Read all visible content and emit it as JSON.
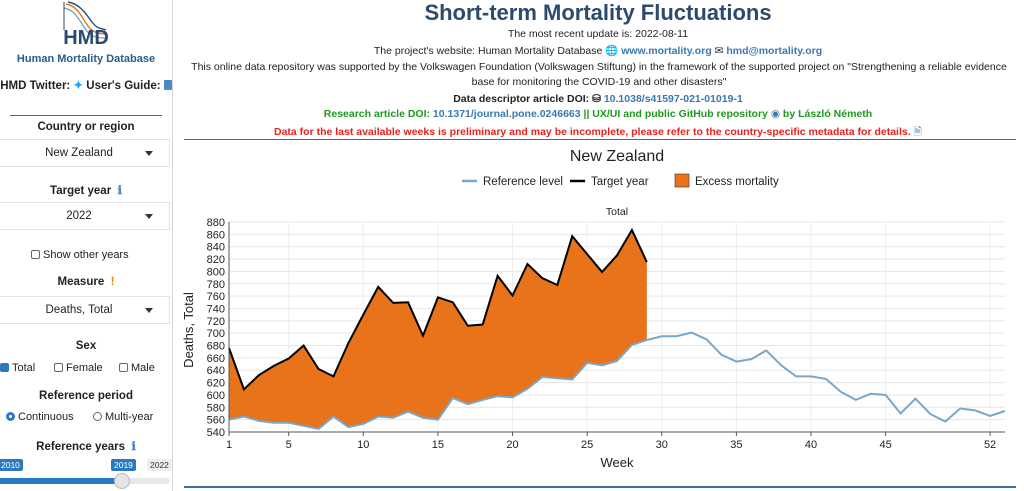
{
  "sidebar": {
    "logo_text": "HMD",
    "db_name": "Human Mortality Database",
    "twitter_label": "HMD Twitter:",
    "guide_label": "User's Guide:",
    "country_label": "Country or region",
    "country_value": "New Zealand",
    "target_year_label": "Target year",
    "target_year_value": "2022",
    "show_other_years": "Show other years",
    "measure_label": "Measure",
    "measure_value": "Deaths, Total",
    "sex_label": "Sex",
    "sex_options": [
      "Total",
      "Female",
      "Male"
    ],
    "sex_selected": "Total",
    "ref_period_label": "Reference period",
    "ref_period_options": [
      "Continuous",
      "Multi-year"
    ],
    "ref_period_selected": "Continuous",
    "ref_years_label": "Reference years",
    "slider_min": "2010",
    "slider_value": "2019",
    "slider_max": "2022"
  },
  "header": {
    "title": "Short-term Mortality Fluctuations",
    "update_prefix": "The most recent update is: ",
    "update_date": "2022-08-11",
    "website_prefix": "The project's website: Human Mortality Database",
    "website_url": "www.mortality.org",
    "email": "hmd@mortality.org",
    "support_text": "This online data repository was supported by the Volkswagen Foundation (Volkswagen Stiftung) in the framework of the supported project on \"Strengthening a reliable evidence base for monitoring the COVID-19 and other disasters\"",
    "descriptor_prefix": "Data descriptor article DOI:",
    "descriptor_doi": "10.1038/s41597-021-01019-1",
    "research_prefix": "Research article DOI:",
    "research_doi": "10.1371/journal.pone.0246663",
    "uxui_text": "|| UX/UI and public GitHub repository",
    "uxui_by": "by László Németh",
    "warning": "Data for the last available weeks is preliminary and may be incomplete, please refer to the country-specific metadata for details."
  },
  "chart_data": {
    "type": "line",
    "title": "New Zealand",
    "subtitle": "Total",
    "xlabel": "Week",
    "ylabel": "Deaths, Total",
    "xlim": [
      1,
      53
    ],
    "ylim": [
      540,
      880
    ],
    "xticks": [
      1,
      5,
      10,
      15,
      20,
      25,
      30,
      35,
      40,
      45,
      52
    ],
    "yticks": [
      540,
      560,
      580,
      600,
      620,
      640,
      660,
      680,
      700,
      720,
      740,
      760,
      780,
      800,
      820,
      840,
      860,
      880
    ],
    "legend_position": "top",
    "legend": [
      "Reference level",
      "Target year",
      "Excess mortality"
    ],
    "colors": {
      "reference": "#7aa6c8",
      "target": "#000000",
      "excess": "#e8731a"
    },
    "series": [
      {
        "name": "Reference level",
        "x": [
          1,
          2,
          3,
          4,
          5,
          6,
          7,
          8,
          9,
          10,
          11,
          12,
          13,
          14,
          15,
          16,
          17,
          18,
          19,
          20,
          21,
          22,
          23,
          24,
          25,
          26,
          27,
          28,
          29,
          30,
          31,
          32,
          33,
          34,
          35,
          36,
          37,
          38,
          39,
          40,
          41,
          42,
          43,
          44,
          45,
          46,
          47,
          48,
          49,
          50,
          51,
          52,
          53
        ],
        "values": [
          560,
          565,
          558,
          555,
          555,
          550,
          545,
          565,
          548,
          553,
          565,
          563,
          573,
          563,
          560,
          595,
          585,
          592,
          598,
          596,
          610,
          629,
          627,
          625,
          652,
          648,
          655,
          681,
          689,
          695,
          695,
          701,
          690,
          665,
          654,
          658,
          672,
          648,
          630,
          630,
          626,
          605,
          592,
          602,
          600,
          570,
          594,
          569,
          557,
          578,
          575,
          566,
          574
        ]
      },
      {
        "name": "Target year",
        "x": [
          1,
          2,
          3,
          4,
          5,
          6,
          7,
          8,
          9,
          10,
          11,
          12,
          13,
          14,
          15,
          16,
          17,
          18,
          19,
          20,
          21,
          22,
          23,
          24,
          25,
          26,
          27,
          28,
          29
        ],
        "values": [
          676,
          609,
          632,
          647,
          659,
          680,
          642,
          630,
          684,
          730,
          775,
          749,
          750,
          696,
          758,
          750,
          712,
          714,
          793,
          761,
          812,
          789,
          778,
          857,
          828,
          799,
          826,
          867,
          815
        ]
      }
    ]
  }
}
